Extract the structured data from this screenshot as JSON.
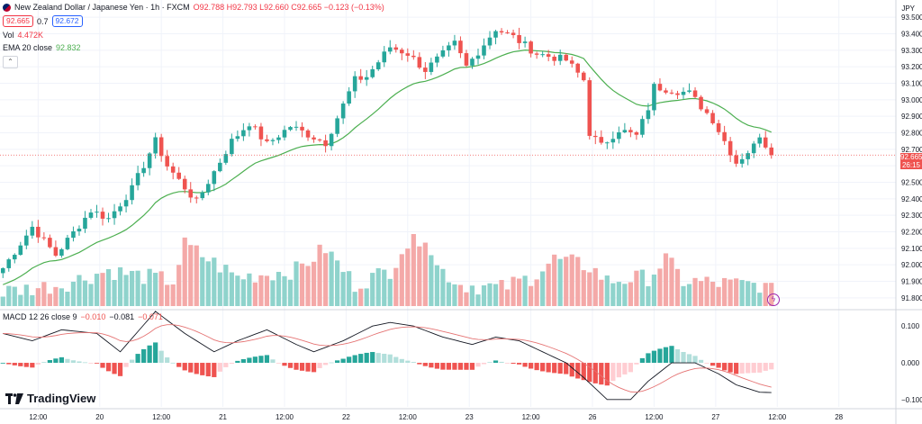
{
  "header": {
    "symbol_title": "New Zealand Dollar / Japanese Yen · 1h · FXCM",
    "ohlc": "O92.788 H92.793 L92.660 C92.665 −0.123 (−0.13%)",
    "bid": "92.665",
    "spread": "0.7",
    "ask": "92.672"
  },
  "indicators": {
    "vol_label": "Vol",
    "vol_value": "4.472K",
    "ema_label": "EMA 20 close",
    "ema_value": "92.832",
    "macd_label": "MACD 12 26 close 9",
    "macd_hist": "−0.010",
    "macd_line": "−0.081",
    "macd_signal": "−0.071"
  },
  "price_scale": {
    "currency": "JPY",
    "current_price": "92.665",
    "countdown": "26:15"
  },
  "brand": "TradingView",
  "colors": {
    "up": "#26a69a",
    "down": "#ef5350",
    "ema": "#4caf50",
    "macd": "#131722",
    "signal": "#e57373"
  },
  "chart_data": {
    "type": "candlestick",
    "title": "New Zealand Dollar / Japanese Yen · 1h · FXCM",
    "price_ticks": [
      "93.500",
      "93.400",
      "93.300",
      "93.200",
      "93.100",
      "93.000",
      "92.900",
      "92.800",
      "92.700",
      "92.600",
      "92.500",
      "92.400",
      "92.300",
      "92.200",
      "92.100",
      "92.000",
      "91.900",
      "91.800"
    ],
    "price_range": [
      91.75,
      93.55
    ],
    "macd_ticks": [
      "0.100",
      "0.000",
      "−0.100"
    ],
    "macd_range": [
      -0.12,
      0.13
    ],
    "time_labels": [
      "12:00",
      "20",
      "12:00",
      "21",
      "12:00",
      "22",
      "12:00",
      "23",
      "12:00",
      "26",
      "12:00",
      "27",
      "12:00",
      "28"
    ],
    "time_label_bars": [
      6,
      16.5,
      27,
      37.5,
      48,
      58.5,
      69,
      79.5,
      90,
      100.5,
      111,
      121.5,
      132,
      142.5
    ],
    "bars": 132,
    "close_anchors": [
      [
        0,
        91.98
      ],
      [
        5,
        92.23
      ],
      [
        9,
        92.06
      ],
      [
        15,
        92.33
      ],
      [
        18,
        92.28
      ],
      [
        22,
        92.46
      ],
      [
        26,
        92.75
      ],
      [
        28,
        92.6
      ],
      [
        33,
        92.38
      ],
      [
        39,
        92.75
      ],
      [
        42,
        92.86
      ],
      [
        45,
        92.73
      ],
      [
        49,
        92.84
      ],
      [
        55,
        92.74
      ],
      [
        60,
        93.12
      ],
      [
        62,
        93.14
      ],
      [
        66,
        93.32
      ],
      [
        69,
        93.28
      ],
      [
        72,
        93.18
      ],
      [
        77,
        93.34
      ],
      [
        79,
        93.2
      ],
      [
        84,
        93.43
      ],
      [
        87,
        93.38
      ],
      [
        91,
        93.28
      ],
      [
        96,
        93.24
      ],
      [
        99,
        93.12
      ],
      [
        100,
        92.8
      ],
      [
        102,
        92.72
      ],
      [
        105,
        92.82
      ],
      [
        108,
        92.78
      ],
      [
        110,
        92.95
      ],
      [
        111,
        93.08
      ],
      [
        114,
        93.06
      ],
      [
        117,
        93.04
      ],
      [
        121,
        92.88
      ],
      [
        123,
        92.75
      ],
      [
        125,
        92.62
      ],
      [
        128,
        92.72
      ],
      [
        129,
        92.79
      ],
      [
        131,
        92.665
      ]
    ],
    "volume_anchors": [
      [
        0,
        0.2
      ],
      [
        10,
        0.3
      ],
      [
        18,
        0.5
      ],
      [
        21,
        0.45
      ],
      [
        29,
        0.35
      ],
      [
        31,
        0.85
      ],
      [
        40,
        0.4
      ],
      [
        50,
        0.5
      ],
      [
        55,
        0.8
      ],
      [
        60,
        0.3
      ],
      [
        66,
        0.5
      ],
      [
        68,
        0.8
      ],
      [
        72,
        1.0
      ],
      [
        74,
        0.55
      ],
      [
        78,
        0.3
      ],
      [
        85,
        0.25
      ],
      [
        90,
        0.4
      ],
      [
        94,
        0.65
      ],
      [
        100,
        0.55
      ],
      [
        103,
        0.35
      ],
      [
        110,
        0.4
      ],
      [
        113,
        0.65
      ],
      [
        116,
        0.35
      ],
      [
        125,
        0.3
      ],
      [
        129,
        0.3
      ],
      [
        131,
        0.2
      ]
    ],
    "macd_anchors": [
      [
        0,
        0.08
      ],
      [
        5,
        0.06
      ],
      [
        10,
        0.09
      ],
      [
        16,
        0.08
      ],
      [
        20,
        0.03
      ],
      [
        26,
        0.14
      ],
      [
        31,
        0.08
      ],
      [
        36,
        0.03
      ],
      [
        40,
        0.06
      ],
      [
        45,
        0.09
      ],
      [
        50,
        0.05
      ],
      [
        53,
        0.03
      ],
      [
        58,
        0.06
      ],
      [
        63,
        0.1
      ],
      [
        66,
        0.11
      ],
      [
        70,
        0.1
      ],
      [
        75,
        0.07
      ],
      [
        80,
        0.05
      ],
      [
        84,
        0.07
      ],
      [
        88,
        0.06
      ],
      [
        92,
        0.03
      ],
      [
        96,
        0.0
      ],
      [
        99,
        -0.04
      ],
      [
        103,
        -0.1
      ],
      [
        107,
        -0.1
      ],
      [
        110,
        -0.05
      ],
      [
        114,
        0.0
      ],
      [
        118,
        0.0
      ],
      [
        122,
        -0.03
      ],
      [
        125,
        -0.06
      ],
      [
        129,
        -0.08
      ],
      [
        131,
        -0.081
      ]
    ],
    "series": [
      {
        "name": "Vol",
        "value": "4.472K"
      },
      {
        "name": "EMA 20 close",
        "value": "92.832"
      },
      {
        "name": "MACD 12 26 close 9",
        "values": [
          "−0.010",
          "−0.081",
          "−0.071"
        ]
      }
    ]
  }
}
